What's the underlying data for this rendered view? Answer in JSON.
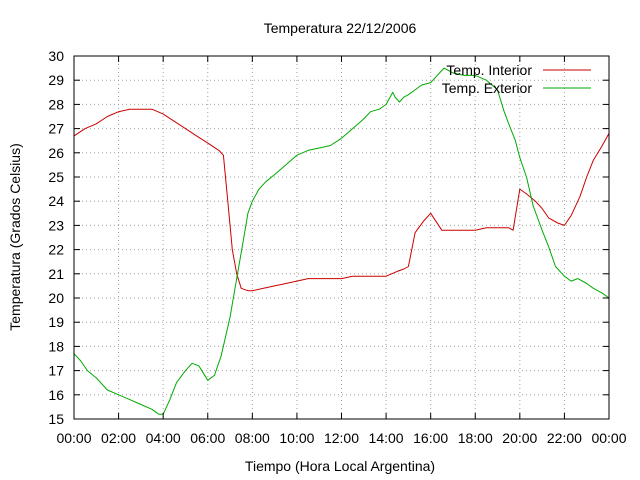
{
  "chart_data": {
    "type": "line",
    "title": "Temperatura 22/12/2006",
    "xlabel": "Tiempo (Hora Local Argentina)",
    "ylabel": "Temperatura (Grados Celsius)",
    "xlim": [
      0,
      24
    ],
    "ylim": [
      15,
      30
    ],
    "x_tick_labels": [
      "00:00",
      "02:00",
      "04:00",
      "06:00",
      "08:00",
      "10:00",
      "12:00",
      "14:00",
      "16:00",
      "18:00",
      "20:00",
      "22:00",
      "00:00"
    ],
    "y_tick_labels": [
      "15",
      "16",
      "17",
      "18",
      "19",
      "20",
      "21",
      "22",
      "23",
      "24",
      "25",
      "26",
      "27",
      "28",
      "29",
      "30"
    ],
    "grid": true,
    "legend_position": "top-right",
    "series": [
      {
        "name": "Temp. Interior",
        "color": "#cc0000",
        "x": [
          0,
          0.5,
          1,
          1.5,
          2,
          2.5,
          3,
          3.5,
          4,
          4.5,
          5,
          5.5,
          6,
          6.5,
          6.7,
          6.9,
          7.1,
          7.3,
          7.5,
          7.8,
          8,
          8.5,
          9,
          9.5,
          10,
          10.5,
          11,
          11.5,
          12,
          12.5,
          13,
          13.5,
          14,
          14.5,
          14.8,
          15,
          15.3,
          15.7,
          16,
          16.5,
          17,
          17.5,
          18,
          18.5,
          19,
          19.5,
          19.7,
          20,
          20.3,
          20.7,
          21,
          21.3,
          21.7,
          22,
          22.3,
          22.7,
          23,
          23.3,
          23.7,
          24
        ],
        "y": [
          26.7,
          27.0,
          27.2,
          27.5,
          27.7,
          27.8,
          27.8,
          27.8,
          27.6,
          27.3,
          27.0,
          26.7,
          26.4,
          26.1,
          25.9,
          24.0,
          22.0,
          21.0,
          20.4,
          20.3,
          20.3,
          20.4,
          20.5,
          20.6,
          20.7,
          20.8,
          20.8,
          20.8,
          20.8,
          20.9,
          20.9,
          20.9,
          20.9,
          21.1,
          21.2,
          21.3,
          22.7,
          23.2,
          23.5,
          22.8,
          22.8,
          22.8,
          22.8,
          22.9,
          22.9,
          22.9,
          22.8,
          24.5,
          24.3,
          24.0,
          23.7,
          23.3,
          23.1,
          23.0,
          23.4,
          24.2,
          25.0,
          25.7,
          26.3,
          26.8
        ]
      },
      {
        "name": "Temp. Exterior",
        "color": "#00aa00",
        "x": [
          0,
          0.3,
          0.6,
          1,
          1.5,
          2,
          2.5,
          3,
          3.5,
          3.8,
          4,
          4.3,
          4.6,
          5,
          5.3,
          5.6,
          6,
          6.3,
          6.6,
          7,
          7.3,
          7.6,
          7.8,
          8,
          8.3,
          8.6,
          9,
          9.5,
          10,
          10.5,
          11,
          11.5,
          12,
          12.5,
          13,
          13.3,
          13.7,
          14,
          14.3,
          14.4,
          14.6,
          14.8,
          15,
          15.3,
          15.6,
          16,
          16.2,
          16.4,
          16.6,
          16.8,
          17,
          17.5,
          18,
          18.5,
          19,
          19.3,
          19.5,
          19.8,
          20,
          20.3,
          20.6,
          21,
          21.3,
          21.6,
          22,
          22.3,
          22.6,
          23,
          23.3,
          23.7,
          24
        ],
        "y": [
          17.7,
          17.4,
          17.0,
          16.7,
          16.2,
          16.0,
          15.8,
          15.6,
          15.4,
          15.2,
          15.2,
          15.8,
          16.5,
          17.0,
          17.3,
          17.2,
          16.6,
          16.8,
          17.6,
          19.2,
          20.8,
          22.4,
          23.5,
          24.0,
          24.5,
          24.8,
          25.1,
          25.5,
          25.9,
          26.1,
          26.2,
          26.3,
          26.6,
          27.0,
          27.4,
          27.7,
          27.8,
          28.0,
          28.5,
          28.3,
          28.1,
          28.3,
          28.4,
          28.6,
          28.8,
          28.9,
          29.1,
          29.3,
          29.5,
          29.4,
          29.3,
          29.2,
          29.2,
          29.0,
          28.6,
          27.7,
          27.2,
          26.5,
          25.8,
          25.0,
          23.8,
          22.8,
          22.1,
          21.3,
          20.9,
          20.7,
          20.8,
          20.6,
          20.4,
          20.2,
          20.0
        ]
      }
    ]
  }
}
